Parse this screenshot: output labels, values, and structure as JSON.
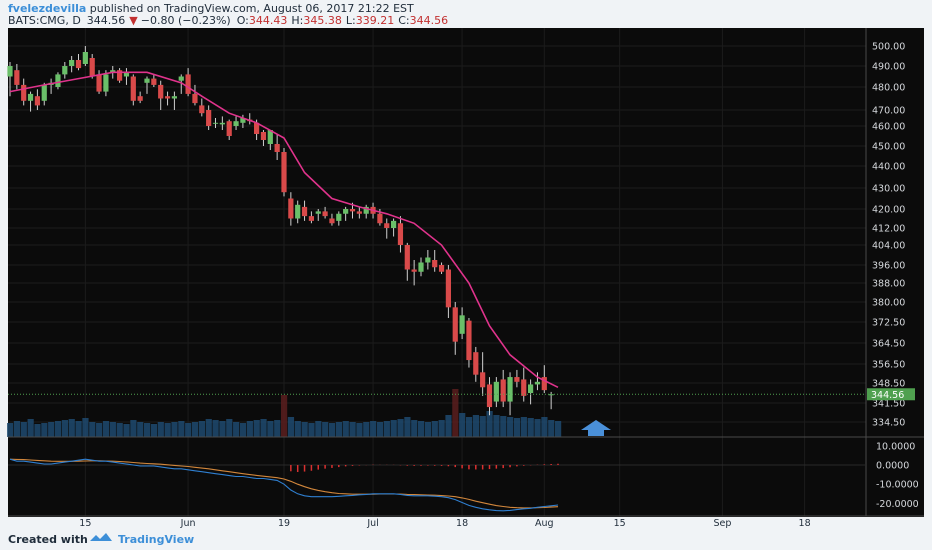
{
  "header": {
    "author": "fvelezdevilla",
    "published": " published on TradingView.com, August 06, 2017 21:22 EST",
    "symbol": "BATS:CMG, D",
    "last": "344.56",
    "change": "−0.80 (−0.23%)",
    "o_label": "O:",
    "o_value": "344.43",
    "h_label": "H:",
    "h_value": "345.38",
    "l_label": "L:",
    "l_value": "339.21",
    "c_label": "C:",
    "c_value": "344.56"
  },
  "footer": {
    "created_with": "Created with",
    "brand": "TradingView"
  },
  "price_badge": "344.56",
  "colors": {
    "background": "#0b0b0b",
    "up": "#6abf69",
    "down": "#d94a4a",
    "ma": "#e0338c",
    "macd": "#2f7fd0",
    "signal": "#d2873c",
    "hist": "#d93030",
    "arrow": "#4a90d9",
    "volume": "#1f4a70"
  },
  "chart_data": {
    "type": "candlestick",
    "title": "BATS:CMG, D",
    "price_ticks": [
      "500.00",
      "490.00",
      "480.00",
      "470.00",
      "460.00",
      "450.00",
      "440.00",
      "430.00",
      "420.00",
      "412.00",
      "404.00",
      "396.00",
      "388.00",
      "380.00",
      "372.50",
      "364.50",
      "356.50",
      "348.50",
      "341.50",
      "334.50"
    ],
    "price_tick_values": [
      500,
      490,
      480,
      470,
      460,
      450,
      440,
      430,
      420,
      412,
      404,
      396,
      388,
      380,
      372.5,
      364.5,
      356.5,
      348.5,
      341.5,
      334.5
    ],
    "macd_ticks": [
      "10.0000",
      "0.0000",
      "-10.0000",
      "-20.0000"
    ],
    "macd_tick_values": [
      10,
      0,
      -10,
      -20
    ],
    "time_labels": [
      "15",
      "Jun",
      "19",
      "Jul",
      "18",
      "Aug",
      "15",
      "Sep",
      "18"
    ],
    "time_label_index": [
      11,
      26,
      40,
      53,
      66,
      78,
      89,
      104,
      116
    ],
    "moving_average": [
      [
        0,
        478
      ],
      [
        5,
        481
      ],
      [
        10,
        484
      ],
      [
        15,
        487
      ],
      [
        20,
        487
      ],
      [
        25,
        482
      ],
      [
        28,
        476
      ],
      [
        32,
        468
      ],
      [
        36,
        462
      ],
      [
        40,
        454
      ],
      [
        43,
        437
      ],
      [
        47,
        425
      ],
      [
        51,
        421
      ],
      [
        55,
        418
      ],
      [
        59,
        414
      ],
      [
        63,
        404
      ],
      [
        67,
        388
      ],
      [
        70,
        371
      ],
      [
        73,
        360
      ],
      [
        77,
        351
      ],
      [
        80,
        347
      ]
    ],
    "candles": [
      {
        "o": 485,
        "h": 492,
        "l": 476,
        "c": 490
      },
      {
        "o": 488,
        "h": 491,
        "l": 479,
        "c": 481
      },
      {
        "o": 481,
        "h": 484,
        "l": 472,
        "c": 474
      },
      {
        "o": 474,
        "h": 478,
        "l": 469,
        "c": 477
      },
      {
        "o": 476,
        "h": 479,
        "l": 470,
        "c": 472
      },
      {
        "o": 474,
        "h": 482,
        "l": 472,
        "c": 481
      },
      {
        "o": 481,
        "h": 484,
        "l": 477,
        "c": 482
      },
      {
        "o": 480,
        "h": 487,
        "l": 479,
        "c": 486
      },
      {
        "o": 486,
        "h": 492,
        "l": 484,
        "c": 490
      },
      {
        "o": 490,
        "h": 495,
        "l": 487,
        "c": 493
      },
      {
        "o": 493,
        "h": 496,
        "l": 488,
        "c": 489
      },
      {
        "o": 491,
        "h": 500,
        "l": 490,
        "c": 497
      },
      {
        "o": 494,
        "h": 496,
        "l": 484,
        "c": 485
      },
      {
        "o": 486,
        "h": 488,
        "l": 477,
        "c": 478
      },
      {
        "o": 478,
        "h": 488,
        "l": 476,
        "c": 486
      },
      {
        "o": 487,
        "h": 490,
        "l": 484,
        "c": 488
      },
      {
        "o": 488,
        "h": 489,
        "l": 482,
        "c": 483
      },
      {
        "o": 485,
        "h": 489,
        "l": 481,
        "c": 487
      },
      {
        "o": 485,
        "h": 486,
        "l": 472,
        "c": 474
      },
      {
        "o": 476,
        "h": 478,
        "l": 473,
        "c": 474
      },
      {
        "o": 482,
        "h": 485,
        "l": 477,
        "c": 484
      },
      {
        "o": 484,
        "h": 486,
        "l": 480,
        "c": 481
      },
      {
        "o": 481,
        "h": 483,
        "l": 470,
        "c": 475
      },
      {
        "o": 476,
        "h": 478,
        "l": 472,
        "c": 475
      },
      {
        "o": 475,
        "h": 478,
        "l": 470,
        "c": 476
      },
      {
        "o": 483,
        "h": 486,
        "l": 477,
        "c": 485
      },
      {
        "o": 486,
        "h": 489,
        "l": 476,
        "c": 477
      },
      {
        "o": 477,
        "h": 481,
        "l": 472,
        "c": 473
      },
      {
        "o": 472,
        "h": 475,
        "l": 466,
        "c": 468
      },
      {
        "o": 470,
        "h": 472,
        "l": 458,
        "c": 460
      },
      {
        "o": 462,
        "h": 465,
        "l": 459,
        "c": 462
      },
      {
        "o": 461,
        "h": 466,
        "l": 458,
        "c": 462
      },
      {
        "o": 463,
        "h": 464,
        "l": 453,
        "c": 455
      },
      {
        "o": 460,
        "h": 466,
        "l": 458,
        "c": 463
      },
      {
        "o": 462,
        "h": 467,
        "l": 459,
        "c": 465
      },
      {
        "o": 464,
        "h": 468,
        "l": 461,
        "c": 463
      },
      {
        "o": 462,
        "h": 464,
        "l": 453,
        "c": 456
      },
      {
        "o": 457,
        "h": 458,
        "l": 450,
        "c": 453
      },
      {
        "o": 451,
        "h": 458,
        "l": 448,
        "c": 458
      },
      {
        "o": 451,
        "h": 456,
        "l": 443,
        "c": 447
      },
      {
        "o": 447,
        "h": 449,
        "l": 426,
        "c": 428
      },
      {
        "o": 425,
        "h": 428,
        "l": 413,
        "c": 416
      },
      {
        "o": 416,
        "h": 424,
        "l": 414,
        "c": 422
      },
      {
        "o": 421,
        "h": 424,
        "l": 415,
        "c": 417
      },
      {
        "o": 417,
        "h": 419,
        "l": 414,
        "c": 415
      },
      {
        "o": 418,
        "h": 420,
        "l": 415,
        "c": 419
      },
      {
        "o": 419,
        "h": 421,
        "l": 416,
        "c": 417
      },
      {
        "o": 416,
        "h": 418,
        "l": 413,
        "c": 414
      },
      {
        "o": 415,
        "h": 419,
        "l": 413,
        "c": 418
      },
      {
        "o": 418,
        "h": 421,
        "l": 415,
        "c": 420
      },
      {
        "o": 420,
        "h": 423,
        "l": 416,
        "c": 419
      },
      {
        "o": 419,
        "h": 421,
        "l": 416,
        "c": 418
      },
      {
        "o": 418,
        "h": 422,
        "l": 416,
        "c": 421
      },
      {
        "o": 421,
        "h": 423,
        "l": 416,
        "c": 418
      },
      {
        "o": 418,
        "h": 420,
        "l": 413,
        "c": 414
      },
      {
        "o": 414,
        "h": 416,
        "l": 407,
        "c": 412
      },
      {
        "o": 412,
        "h": 416,
        "l": 408,
        "c": 415
      },
      {
        "o": 414,
        "h": 417,
        "l": 401,
        "c": 404
      },
      {
        "o": 404,
        "h": 405,
        "l": 389,
        "c": 394
      },
      {
        "o": 394,
        "h": 398,
        "l": 387,
        "c": 393
      },
      {
        "o": 393,
        "h": 399,
        "l": 391,
        "c": 397
      },
      {
        "o": 397,
        "h": 402,
        "l": 394,
        "c": 399
      },
      {
        "o": 398,
        "h": 402,
        "l": 393,
        "c": 395
      },
      {
        "o": 396,
        "h": 397,
        "l": 392,
        "c": 393
      },
      {
        "o": 394,
        "h": 396,
        "l": 374,
        "c": 378
      },
      {
        "o": 378,
        "h": 380,
        "l": 360,
        "c": 365
      },
      {
        "o": 368,
        "h": 378,
        "l": 366,
        "c": 375
      },
      {
        "o": 373,
        "h": 374,
        "l": 355,
        "c": 358
      },
      {
        "o": 361,
        "h": 363,
        "l": 349,
        "c": 352
      },
      {
        "o": 353,
        "h": 361,
        "l": 344,
        "c": 347
      },
      {
        "o": 348,
        "h": 351,
        "l": 337,
        "c": 340
      },
      {
        "o": 342,
        "h": 351,
        "l": 340,
        "c": 349
      },
      {
        "o": 350,
        "h": 354,
        "l": 340,
        "c": 342
      },
      {
        "o": 342,
        "h": 353,
        "l": 337,
        "c": 351
      },
      {
        "o": 351,
        "h": 354,
        "l": 347,
        "c": 349
      },
      {
        "o": 350,
        "h": 355,
        "l": 342,
        "c": 344
      },
      {
        "o": 345,
        "h": 350,
        "l": 341,
        "c": 348
      },
      {
        "o": 348,
        "h": 353,
        "l": 346,
        "c": 349
      },
      {
        "o": 351,
        "h": 356,
        "l": 345,
        "c": 346
      },
      {
        "o": 344.43,
        "h": 345.38,
        "l": 339.21,
        "c": 344.56
      }
    ],
    "volume": [
      14,
      16,
      15,
      18,
      13,
      14,
      15,
      16,
      17,
      18,
      16,
      19,
      15,
      14,
      16,
      15,
      14,
      13,
      17,
      15,
      14,
      13,
      15,
      14,
      15,
      16,
      14,
      15,
      16,
      18,
      17,
      16,
      18,
      15,
      14,
      16,
      17,
      18,
      16,
      17,
      42,
      20,
      16,
      15,
      14,
      16,
      15,
      14,
      15,
      16,
      15,
      14,
      15,
      16,
      15,
      16,
      17,
      18,
      20,
      17,
      16,
      15,
      16,
      17,
      22,
      48,
      24,
      20,
      22,
      21,
      26,
      22,
      21,
      20,
      19,
      20,
      19,
      18,
      20,
      17,
      16
    ],
    "macd": [
      3,
      2,
      2,
      1.5,
      1,
      0.5,
      0.5,
      1,
      1.5,
      2,
      2.5,
      3,
      2.5,
      2,
      2,
      1.5,
      1,
      0.5,
      0,
      -0.5,
      -0.5,
      -0.5,
      -1,
      -1.5,
      -2,
      -2,
      -2.5,
      -3,
      -3.5,
      -4,
      -4.5,
      -5,
      -5.5,
      -6,
      -6,
      -6.5,
      -7,
      -7,
      -7.5,
      -8,
      -10,
      -13,
      -15,
      -16,
      -16.5,
      -16.5,
      -16.5,
      -16.5,
      -16.3,
      -16,
      -15.8,
      -15.5,
      -15.3,
      -15,
      -15,
      -15,
      -15,
      -15.3,
      -15.8,
      -16,
      -16,
      -16,
      -16.2,
      -16.5,
      -17,
      -18,
      -19.5,
      -21,
      -22,
      -22.8,
      -23.3,
      -23.7,
      -23.8,
      -23.6,
      -23.2,
      -22.8,
      -22.5,
      -22,
      -21.6,
      -21.2,
      -20.8
    ],
    "signal": [
      3,
      2.9,
      2.8,
      2.6,
      2.4,
      2.2,
      2,
      1.9,
      1.9,
      1.9,
      2,
      2.1,
      2.2,
      2.2,
      2.1,
      2,
      1.8,
      1.6,
      1.3,
      1,
      0.8,
      0.6,
      0.4,
      0.1,
      -0.2,
      -0.5,
      -0.8,
      -1.2,
      -1.6,
      -2,
      -2.5,
      -3,
      -3.5,
      -4,
      -4.5,
      -5,
      -5.4,
      -5.8,
      -6.2,
      -6.6,
      -7.3,
      -8.5,
      -10,
      -11.3,
      -12.4,
      -13.2,
      -13.9,
      -14.4,
      -14.8,
      -15,
      -15.2,
      -15.2,
      -15.2,
      -15.2,
      -15.1,
      -15.1,
      -15.1,
      -15.1,
      -15.3,
      -15.4,
      -15.5,
      -15.6,
      -15.7,
      -15.9,
      -16.1,
      -16.5,
      -17.1,
      -17.9,
      -18.8,
      -19.6,
      -20.4,
      -21.1,
      -21.6,
      -22,
      -22.2,
      -22.3,
      -22.3,
      -22.2,
      -22.1,
      -21.9,
      -21.7
    ],
    "ylim": [
      328,
      505
    ],
    "macd_ylim": [
      -26,
      13
    ]
  }
}
